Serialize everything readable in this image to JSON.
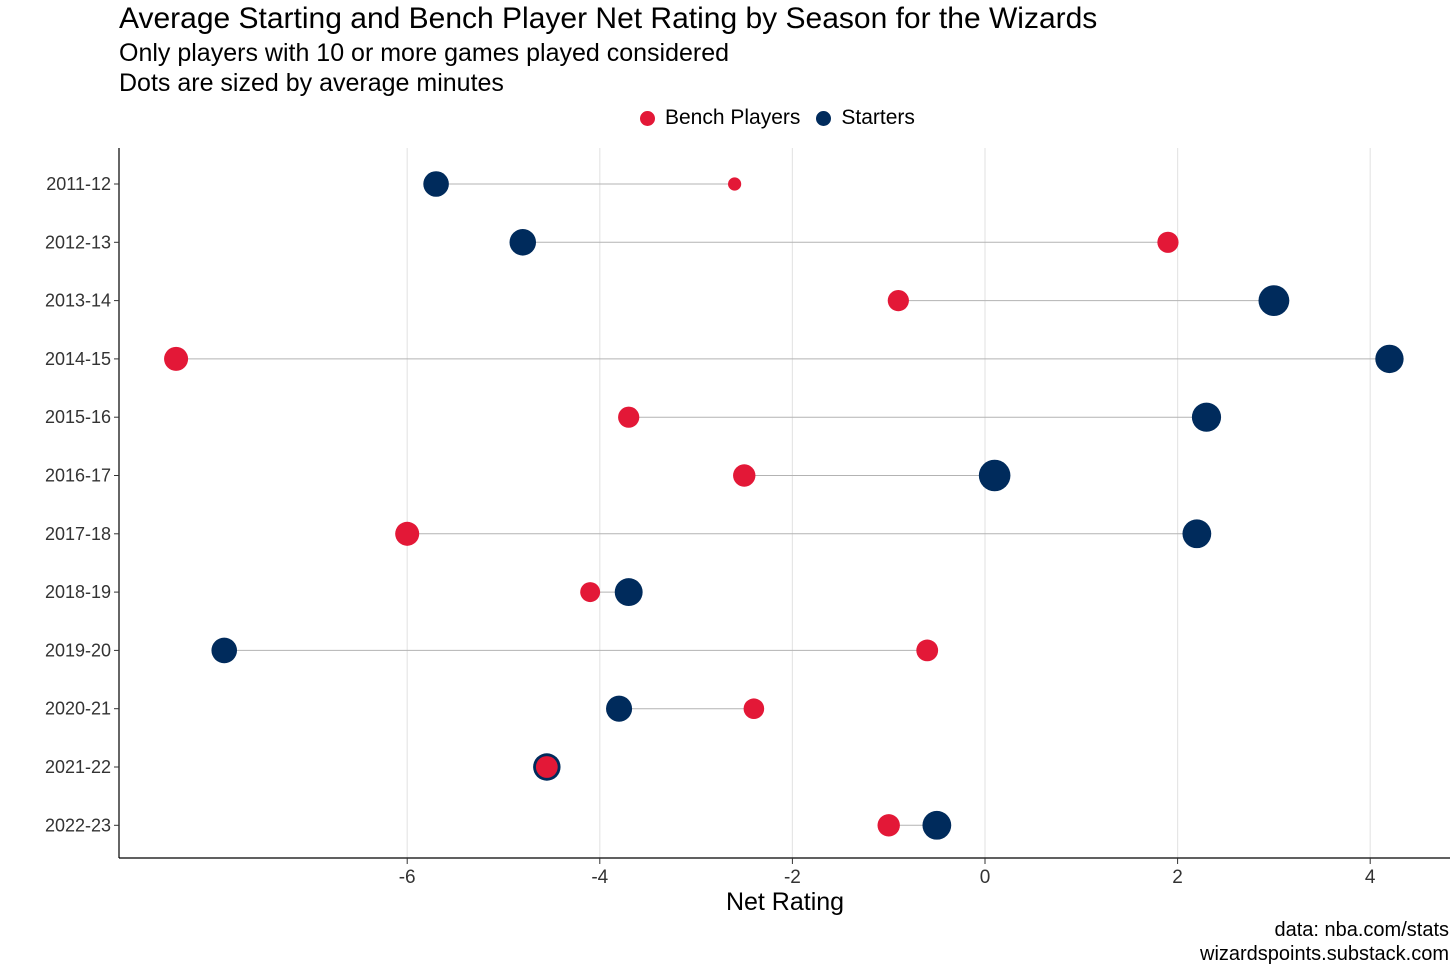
{
  "chart_data": {
    "type": "dumbbell",
    "title": "Average Starting and Bench Player Net Rating by Season for the Wizards",
    "subtitles": [
      "Only players with 10 or more games played considered",
      "Dots are sized by average minutes"
    ],
    "xlabel": "Net Rating",
    "ylabel": "",
    "xlim": [
      -9.0,
      4.8
    ],
    "xticks": [
      -6,
      -4,
      -2,
      0,
      2,
      4
    ],
    "xtick_labels": [
      "-6",
      "-4",
      "-2",
      "0",
      "2",
      "4"
    ],
    "grid": "vertical major gridlines",
    "legend_position": "top-center",
    "legend": [
      {
        "label": "Bench Players",
        "color": "#E31837"
      },
      {
        "label": "Starters",
        "color": "#002B5C"
      }
    ],
    "categories": [
      "2011-12",
      "2012-13",
      "2013-14",
      "2014-15",
      "2015-16",
      "2016-17",
      "2017-18",
      "2018-19",
      "2019-20",
      "2020-21",
      "2021-22",
      "2022-23"
    ],
    "series": [
      {
        "name": "Bench Players",
        "color": "#E31837",
        "values": [
          -2.6,
          1.9,
          -0.9,
          -8.4,
          -3.7,
          -2.5,
          -6.0,
          -4.1,
          -0.6,
          -2.4,
          -4.55,
          -1.0
        ],
        "avg_minutes": [
          4,
          14,
          14,
          19,
          14,
          16,
          19,
          12,
          15,
          13,
          15,
          16
        ]
      },
      {
        "name": "Starters",
        "color": "#002B5C",
        "values": [
          -5.7,
          -4.8,
          3.0,
          4.2,
          2.3,
          0.1,
          2.2,
          -3.7,
          -7.9,
          -3.8,
          -4.55,
          -0.5
        ],
        "avg_minutes": [
          22,
          24,
          34,
          28,
          30,
          36,
          29,
          27,
          22,
          23,
          26,
          29
        ]
      }
    ]
  },
  "caption": {
    "source": "data: nba.com/stats",
    "site": "wizardspoints.substack.com"
  }
}
